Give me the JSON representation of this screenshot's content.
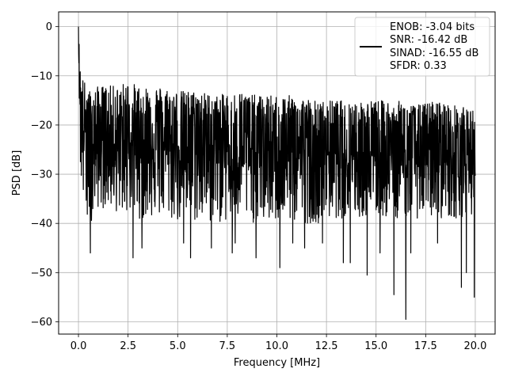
{
  "chart_data": {
    "type": "line",
    "title": "",
    "xlabel": "Frequency [MHz]",
    "ylabel": "PSD [dB]",
    "xlim": [
      -1.0,
      21.0
    ],
    "ylim": [
      -62.5,
      3.0
    ],
    "xticks": [
      0.0,
      2.5,
      5.0,
      7.5,
      10.0,
      12.5,
      15.0,
      17.5,
      20.0
    ],
    "xtick_labels": [
      "0.0",
      "2.5",
      "5.0",
      "7.5",
      "10.0",
      "12.5",
      "15.0",
      "17.5",
      "20.0"
    ],
    "yticks": [
      0,
      -10,
      -20,
      -30,
      -40,
      -50,
      -60
    ],
    "ytick_labels": [
      "0",
      "−10",
      "−20",
      "−30",
      "−40",
      "−50",
      "−60"
    ],
    "grid": true,
    "legend_position": "top-right",
    "legend": {
      "lines": [
        "ENOB: -3.04 bits",
        "SNR: -16.42 dB",
        "SINAD: -16.55 dB",
        "SFDR: 0.33"
      ]
    },
    "series": [
      {
        "color": "#000000",
        "x": [
          0.0,
          0.05,
          0.1,
          0.2,
          0.3,
          0.4,
          0.6,
          0.8,
          1.0,
          1.5,
          2.0,
          2.5,
          3.0,
          4.0,
          5.0,
          6.0,
          7.0,
          8.0,
          9.0,
          10.0,
          11.0,
          12.0,
          13.0,
          14.0,
          15.0,
          16.0,
          17.0,
          18.0,
          19.0,
          20.0
        ],
        "y_upper": [
          0,
          -5,
          -9,
          -10,
          -11,
          -12,
          -13,
          -13,
          -12,
          -12,
          -12,
          -11,
          -12,
          -12,
          -13,
          -13,
          -14,
          -13,
          -14,
          -14,
          -14,
          -15,
          -15,
          -15,
          -15,
          -15,
          -16,
          -15,
          -16,
          -17
        ],
        "y_center": [
          -1,
          -10,
          -18,
          -20,
          -21,
          -22,
          -23,
          -23,
          -23,
          -23,
          -23,
          -23,
          -23,
          -23,
          -24,
          -24,
          -24,
          -24,
          -25,
          -25,
          -25,
          -25,
          -25,
          -25,
          -25,
          -25,
          -25,
          -25,
          -25,
          -25
        ],
        "y_lower": [
          -2,
          -18,
          -30,
          -36,
          -37,
          -39,
          -40,
          -38,
          -37,
          -37,
          -38,
          -38,
          -39,
          -39,
          -40,
          -40,
          -40,
          -40,
          -40,
          -40,
          -40,
          -40,
          -39,
          -39,
          -39,
          -39,
          -39,
          -39,
          -39,
          -38
        ],
        "dips": [
          [
            0.6,
            -46
          ],
          [
            2.75,
            -47
          ],
          [
            3.2,
            -45
          ],
          [
            5.3,
            -44
          ],
          [
            5.65,
            -47
          ],
          [
            6.7,
            -45
          ],
          [
            7.75,
            -46
          ],
          [
            7.9,
            -44
          ],
          [
            8.95,
            -47
          ],
          [
            10.15,
            -49
          ],
          [
            10.8,
            -44
          ],
          [
            11.4,
            -45
          ],
          [
            12.3,
            -44
          ],
          [
            13.35,
            -48
          ],
          [
            13.7,
            -48
          ],
          [
            14.55,
            -50.5
          ],
          [
            15.2,
            -46
          ],
          [
            15.9,
            -54.5
          ],
          [
            16.5,
            -59.5
          ],
          [
            16.75,
            -46
          ],
          [
            18.1,
            -44
          ],
          [
            19.3,
            -53
          ],
          [
            19.55,
            -50
          ],
          [
            19.95,
            -55
          ]
        ]
      }
    ]
  }
}
